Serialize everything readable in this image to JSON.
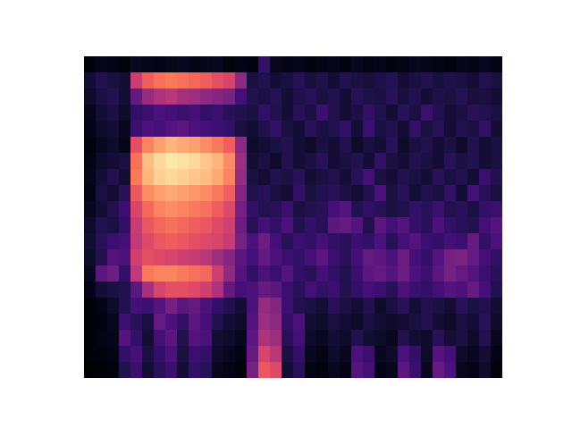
{
  "chart_data": {
    "type": "heatmap",
    "color": "magma",
    "tick_labels": false,
    "zlim": [
      0,
      100
    ],
    "cells": [
      [
        2,
        5,
        4,
        3,
        6,
        5,
        4,
        5,
        6,
        4,
        5,
        6,
        3,
        4,
        3,
        18,
        6,
        4,
        5,
        3,
        4,
        5,
        3,
        6,
        4,
        5,
        3,
        4,
        6,
        5,
        4,
        3,
        5,
        4,
        6,
        4
      ],
      [
        10,
        14,
        12,
        10,
        55,
        66,
        70,
        72,
        70,
        68,
        66,
        62,
        58,
        40,
        12,
        14,
        10,
        12,
        15,
        11,
        13,
        10,
        14,
        12,
        11,
        13,
        15,
        10,
        12,
        14,
        11,
        13,
        12,
        10,
        14,
        12
      ],
      [
        8,
        12,
        14,
        10,
        30,
        42,
        48,
        50,
        46,
        44,
        40,
        38,
        35,
        22,
        14,
        12,
        15,
        10,
        13,
        16,
        12,
        14,
        10,
        15,
        13,
        12,
        16,
        11,
        14,
        10,
        13,
        12,
        15,
        11,
        12,
        10
      ],
      [
        5,
        10,
        12,
        8,
        18,
        20,
        24,
        22,
        20,
        22,
        18,
        20,
        16,
        14,
        12,
        18,
        14,
        10,
        16,
        12,
        20,
        14,
        10,
        12,
        18,
        14,
        10,
        16,
        12,
        20,
        14,
        10,
        12,
        16,
        14,
        12
      ],
      [
        4,
        8,
        10,
        6,
        20,
        24,
        22,
        26,
        28,
        24,
        22,
        20,
        18,
        12,
        10,
        14,
        18,
        12,
        10,
        16,
        12,
        14,
        18,
        10,
        20,
        12,
        14,
        10,
        18,
        12,
        16,
        10,
        14,
        12,
        18,
        10
      ],
      [
        3,
        6,
        8,
        5,
        62,
        74,
        80,
        84,
        82,
        80,
        76,
        72,
        66,
        40,
        8,
        10,
        12,
        14,
        10,
        8,
        12,
        10,
        14,
        8,
        12,
        10,
        16,
        8,
        12,
        14,
        10,
        12,
        8,
        14,
        10,
        12
      ],
      [
        4,
        8,
        10,
        12,
        70,
        86,
        92,
        95,
        94,
        92,
        88,
        84,
        76,
        44,
        10,
        12,
        8,
        14,
        10,
        12,
        16,
        10,
        12,
        14,
        10,
        18,
        12,
        10,
        14,
        12,
        10,
        16,
        12,
        14,
        10,
        12
      ],
      [
        5,
        10,
        14,
        10,
        72,
        84,
        90,
        92,
        90,
        88,
        86,
        82,
        74,
        42,
        12,
        10,
        14,
        12,
        16,
        10,
        12,
        14,
        10,
        16,
        22,
        12,
        10,
        14,
        12,
        10,
        16,
        12,
        14,
        10,
        20,
        14
      ],
      [
        4,
        12,
        10,
        16,
        64,
        76,
        80,
        82,
        80,
        78,
        76,
        72,
        66,
        38,
        14,
        16,
        12,
        10,
        18,
        12,
        14,
        16,
        12,
        10,
        14,
        24,
        12,
        16,
        10,
        14,
        12,
        18,
        10,
        22,
        16,
        12
      ],
      [
        6,
        10,
        14,
        20,
        58,
        68,
        74,
        76,
        74,
        72,
        70,
        66,
        60,
        34,
        18,
        14,
        16,
        20,
        12,
        14,
        16,
        22,
        26,
        14,
        18,
        16,
        12,
        14,
        18,
        16,
        20,
        14,
        16,
        12,
        18,
        20
      ],
      [
        8,
        14,
        12,
        18,
        54,
        64,
        68,
        70,
        68,
        66,
        64,
        60,
        56,
        32,
        16,
        22,
        18,
        24,
        14,
        18,
        16,
        28,
        30,
        26,
        14,
        28,
        22,
        26,
        18,
        16,
        24,
        18,
        16,
        14,
        22,
        26
      ],
      [
        10,
        16,
        20,
        22,
        52,
        60,
        64,
        66,
        64,
        62,
        60,
        58,
        54,
        34,
        24,
        32,
        22,
        16,
        20,
        18,
        22,
        18,
        16,
        20,
        18,
        24,
        16,
        22,
        26,
        20,
        18,
        22,
        20,
        30,
        18,
        24
      ],
      [
        8,
        14,
        26,
        24,
        56,
        62,
        60,
        58,
        56,
        54,
        50,
        44,
        38,
        28,
        22,
        30,
        24,
        20,
        18,
        22,
        28,
        20,
        16,
        22,
        30,
        28,
        24,
        32,
        22,
        18,
        26,
        34,
        36,
        30,
        22,
        18
      ],
      [
        6,
        28,
        32,
        18,
        52,
        72,
        74,
        74,
        72,
        70,
        68,
        56,
        40,
        26,
        18,
        24,
        20,
        26,
        18,
        16,
        22,
        18,
        14,
        20,
        28,
        30,
        26,
        32,
        24,
        20,
        28,
        34,
        30,
        26,
        20,
        16
      ],
      [
        4,
        10,
        12,
        14,
        28,
        46,
        58,
        62,
        62,
        60,
        56,
        48,
        30,
        22,
        24,
        30,
        28,
        20,
        16,
        22,
        18,
        20,
        14,
        18,
        22,
        20,
        16,
        24,
        20,
        18,
        22,
        26,
        24,
        30,
        22,
        14
      ],
      [
        2,
        4,
        8,
        14,
        22,
        20,
        26,
        34,
        28,
        30,
        24,
        18,
        14,
        10,
        24,
        42,
        38,
        20,
        14,
        12,
        10,
        16,
        12,
        10,
        14,
        8,
        12,
        16,
        10,
        14,
        12,
        10,
        16,
        12,
        14,
        10
      ],
      [
        2,
        3,
        6,
        20,
        16,
        12,
        30,
        24,
        18,
        28,
        22,
        14,
        10,
        8,
        26,
        44,
        40,
        18,
        24,
        10,
        8,
        12,
        10,
        8,
        12,
        10,
        8,
        10,
        12,
        14,
        10,
        8,
        12,
        10,
        16,
        8
      ],
      [
        2,
        4,
        5,
        26,
        18,
        10,
        22,
        28,
        14,
        26,
        24,
        10,
        8,
        6,
        28,
        48,
        44,
        16,
        22,
        8,
        6,
        10,
        8,
        14,
        10,
        8,
        6,
        14,
        10,
        8,
        16,
        10,
        12,
        8,
        14,
        6
      ],
      [
        2,
        3,
        4,
        18,
        22,
        12,
        18,
        24,
        12,
        20,
        18,
        8,
        6,
        4,
        30,
        58,
        50,
        12,
        18,
        6,
        4,
        8,
        6,
        24,
        20,
        6,
        8,
        24,
        18,
        8,
        26,
        22,
        8,
        6,
        10,
        4
      ],
      [
        1,
        2,
        3,
        14,
        20,
        10,
        16,
        20,
        10,
        18,
        16,
        6,
        4,
        3,
        34,
        64,
        60,
        10,
        16,
        4,
        3,
        6,
        4,
        26,
        22,
        4,
        6,
        28,
        20,
        6,
        30,
        24,
        6,
        4,
        8,
        3
      ]
    ]
  }
}
